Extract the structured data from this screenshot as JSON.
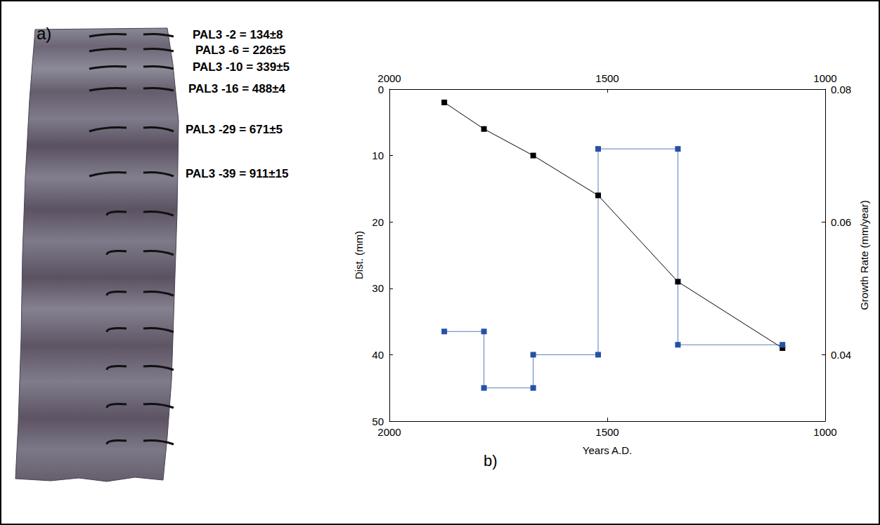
{
  "panels": {
    "a": {
      "label": "a)",
      "annotations": [
        "PAL3 -2 = 134±8",
        "PAL3 -6 = 226±5",
        "PAL3 -10 = 339±5",
        "PAL3 -16 = 488±4",
        "PAL3 -29 = 671±5",
        "PAL3 -39 = 911±15"
      ]
    },
    "b": {
      "label": "b)"
    }
  },
  "chart_data": {
    "type": "line",
    "xlabel": "Years A.D.",
    "ylabel": "Dist. (mm)",
    "y2label": "Growth Rate (mm/year)",
    "xlim": [
      2000,
      1000
    ],
    "xticks": [
      2000,
      1500,
      1000
    ],
    "ylim": [
      50,
      0
    ],
    "yticks": [
      0,
      10,
      20,
      30,
      40,
      50
    ],
    "y2lim": [
      0.03,
      0.08
    ],
    "y2ticks": [
      0.04,
      0.06,
      0.08
    ],
    "grid": false,
    "series": [
      {
        "color": "#000000",
        "marker": "square",
        "line_style": "solid",
        "x": [
          1874,
          1783,
          1670,
          1521,
          1338,
          1098
        ],
        "values": [
          2,
          6,
          10,
          16,
          29,
          39
        ]
      },
      {
        "color": "#2452a6",
        "marker": "square",
        "line_style": "solid",
        "axis": "y2",
        "x": [
          1874,
          1783,
          1783,
          1670,
          1670,
          1521,
          1521,
          1338,
          1338,
          1098
        ],
        "values": [
          0.0435,
          0.0435,
          0.035,
          0.035,
          0.04,
          0.04,
          0.071,
          0.071,
          0.0415,
          0.0415
        ]
      }
    ]
  }
}
